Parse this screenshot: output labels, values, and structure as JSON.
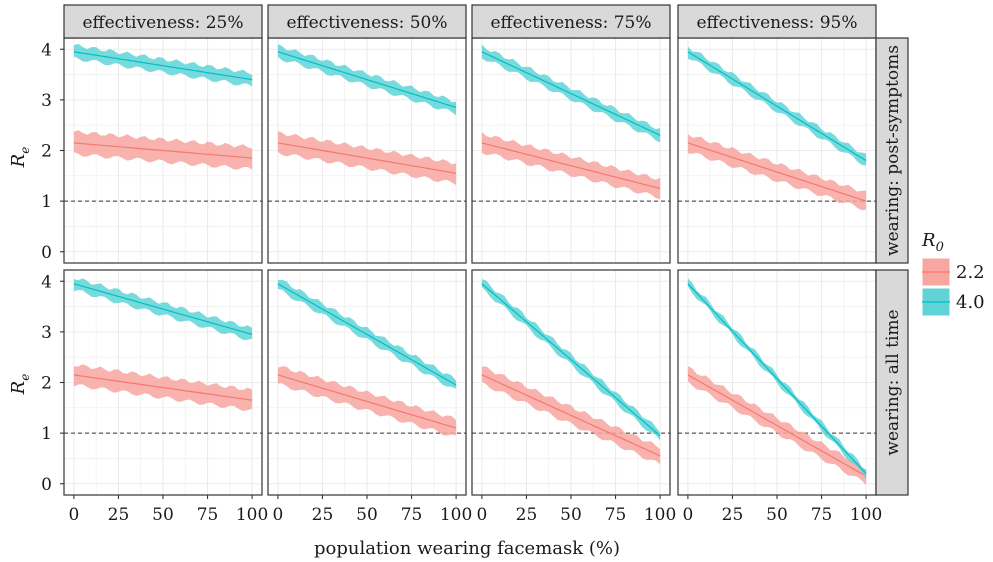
{
  "chart_data": {
    "type": "line",
    "xlabel": "population wearing facemask (%)",
    "ylabel_main": "R",
    "ylabel_sub": "e",
    "xlim": [
      0,
      100
    ],
    "ylim": [
      0,
      4
    ],
    "x_ticks": [
      "0",
      "25",
      "50",
      "75",
      "100"
    ],
    "y_ticks": [
      "0",
      "1",
      "2",
      "3",
      "4"
    ],
    "reference_line": {
      "y": 1,
      "style": "dashed"
    },
    "grid": true,
    "legend": {
      "title_main": "R",
      "title_sub": "0",
      "position": "right",
      "entries": [
        {
          "label": "2.2",
          "color": "#F8766D",
          "fill": "#F8A6A0"
        },
        {
          "label": "4.0",
          "color": "#00BFC4",
          "fill": "#5FD3D6"
        }
      ]
    },
    "columns": [
      "effectiveness: 25%",
      "effectiveness: 50%",
      "effectiveness: 75%",
      "effectiveness: 95%"
    ],
    "rows": [
      "wearing: post-symptoms",
      "wearing: all time"
    ],
    "panels": [
      {
        "row": 0,
        "col": 0,
        "series": [
          {
            "name": "2.2",
            "x": [
              0,
              100
            ],
            "y": [
              2.15,
              1.85
            ],
            "band": 0.22
          },
          {
            "name": "4.0",
            "x": [
              0,
              100
            ],
            "y": [
              3.95,
              3.4
            ],
            "band": 0.13
          }
        ]
      },
      {
        "row": 0,
        "col": 1,
        "series": [
          {
            "name": "2.2",
            "x": [
              0,
              100
            ],
            "y": [
              2.15,
              1.55
            ],
            "band": 0.2
          },
          {
            "name": "4.0",
            "x": [
              0,
              100
            ],
            "y": [
              3.95,
              2.85
            ],
            "band": 0.12
          }
        ]
      },
      {
        "row": 0,
        "col": 2,
        "series": [
          {
            "name": "2.2",
            "x": [
              0,
              100
            ],
            "y": [
              2.15,
              1.25
            ],
            "band": 0.18
          },
          {
            "name": "4.0",
            "x": [
              0,
              100
            ],
            "y": [
              3.95,
              2.3
            ],
            "band": 0.11
          }
        ]
      },
      {
        "row": 0,
        "col": 3,
        "series": [
          {
            "name": "2.2",
            "x": [
              0,
              100
            ],
            "y": [
              2.15,
              1.0
            ],
            "band": 0.17
          },
          {
            "name": "4.0",
            "x": [
              0,
              100
            ],
            "y": [
              3.95,
              1.8
            ],
            "band": 0.1
          }
        ]
      },
      {
        "row": 1,
        "col": 0,
        "series": [
          {
            "name": "2.2",
            "x": [
              0,
              100
            ],
            "y": [
              2.15,
              1.65
            ],
            "band": 0.2
          },
          {
            "name": "4.0",
            "x": [
              0,
              100
            ],
            "y": [
              3.95,
              2.95
            ],
            "band": 0.12
          }
        ]
      },
      {
        "row": 1,
        "col": 1,
        "series": [
          {
            "name": "2.2",
            "x": [
              0,
              100
            ],
            "y": [
              2.15,
              1.1
            ],
            "band": 0.18
          },
          {
            "name": "4.0",
            "x": [
              0,
              100
            ],
            "y": [
              3.95,
              1.95
            ],
            "band": 0.11
          }
        ]
      },
      {
        "row": 1,
        "col": 2,
        "series": [
          {
            "name": "2.2",
            "x": [
              0,
              100
            ],
            "y": [
              2.15,
              0.55
            ],
            "band": 0.17
          },
          {
            "name": "4.0",
            "x": [
              0,
              100
            ],
            "y": [
              3.95,
              0.95
            ],
            "band": 0.1
          }
        ]
      },
      {
        "row": 1,
        "col": 3,
        "series": [
          {
            "name": "2.2",
            "x": [
              0,
              100
            ],
            "y": [
              2.15,
              0.15
            ],
            "band": 0.15
          },
          {
            "name": "4.0",
            "x": [
              0,
              100
            ],
            "y": [
              3.95,
              0.2
            ],
            "band": 0.08
          }
        ]
      }
    ]
  }
}
